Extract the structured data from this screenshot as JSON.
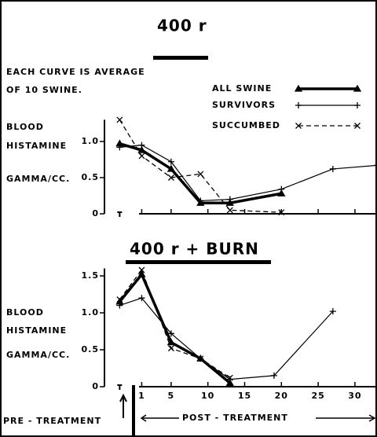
{
  "chart_data": [
    {
      "type": "line",
      "title": "400 r",
      "annotations": [
        "EACH CURVE IS AVERAGE",
        "OF 10 SWINE."
      ],
      "ylabel": [
        "BLOOD",
        "HISTAMINE",
        "GAMMA/CC."
      ],
      "xlim": [
        -3,
        33
      ],
      "ylim": [
        0,
        1.3
      ],
      "yticks": [
        0,
        0.5,
        {
          "value": 1,
          "label": "1.0"
        }
      ],
      "series": [
        {
          "name": "ALL SWINE",
          "color": "#000000",
          "linestyle": "thick",
          "marker": "triangle",
          "x": [
            -2,
            1,
            5,
            9,
            13,
            20
          ],
          "values": [
            0.97,
            0.88,
            0.62,
            0.15,
            0.15,
            0.28
          ]
        },
        {
          "name": "SURVIVORS",
          "color": "#000000",
          "linestyle": "solid",
          "marker": "plus",
          "x": [
            -2,
            1,
            5,
            9,
            13,
            20,
            27,
            33
          ],
          "values": [
            0.92,
            0.95,
            0.72,
            0.18,
            0.2,
            0.34,
            0.62,
            0.67
          ]
        },
        {
          "name": "SUCCUMBED",
          "color": "#000000",
          "linestyle": "dashed",
          "marker": "x",
          "x": [
            -2,
            1,
            5,
            9,
            13,
            20
          ],
          "values": [
            1.3,
            0.8,
            0.5,
            0.55,
            0.05,
            0.02
          ]
        }
      ]
    },
    {
      "type": "line",
      "title": "400 r + BURN",
      "ylabel": [
        "BLOOD",
        "HISTAMINE",
        "GAMMA/CC."
      ],
      "xlabels": [
        "PRE - TREATMENT",
        "POST - TREATMENT"
      ],
      "xlim": [
        -3,
        33
      ],
      "ylim": [
        0,
        1.6
      ],
      "xticks": [
        1,
        5,
        10,
        15,
        20,
        25,
        30
      ],
      "yticks": [
        0,
        0.5,
        {
          "value": 1,
          "label": "1.0"
        },
        1.5
      ],
      "series": [
        {
          "color": "#000000",
          "linestyle": "thick",
          "marker": "triangle",
          "x": [
            -2,
            1,
            5,
            9,
            13
          ],
          "values": [
            1.15,
            1.52,
            0.6,
            0.38,
            0.05
          ]
        },
        {
          "color": "#000000",
          "linestyle": "solid",
          "marker": "plus",
          "x": [
            -2,
            1,
            5,
            9,
            13,
            19,
            27
          ],
          "values": [
            1.1,
            1.2,
            0.72,
            0.38,
            0.1,
            0.15,
            1.02
          ]
        },
        {
          "color": "#000000",
          "linestyle": "dashed",
          "marker": "x",
          "x": [
            -2,
            1,
            5,
            9,
            13
          ],
          "values": [
            1.18,
            1.58,
            0.52,
            0.38,
            0.12
          ]
        }
      ]
    }
  ]
}
